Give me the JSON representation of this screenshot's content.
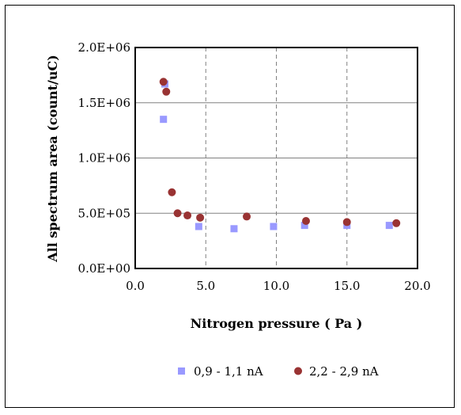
{
  "chart_data": {
    "type": "scatter",
    "title": "",
    "xlabel": "Nitrogen pressure ( Pa )",
    "ylabel": "All spectrum area  (count/uC)",
    "xlim": [
      0,
      20
    ],
    "ylim": [
      0,
      2000000
    ],
    "x_ticks": [
      "0.0",
      "5.0",
      "10.0",
      "15.0",
      "20.0"
    ],
    "x_tick_values": [
      0,
      5,
      10,
      15,
      20
    ],
    "y_ticks": [
      "0.0E+00",
      "5.0E+05",
      "1.0E+06",
      "1.5E+06",
      "2.0E+06"
    ],
    "y_tick_values": [
      0,
      500000,
      1000000,
      1500000,
      2000000
    ],
    "grid": {
      "horizontal": "solid",
      "vertical": "dashed"
    },
    "legend_position": "bottom",
    "series": [
      {
        "name": "0,9 - 1,1 nA",
        "color": "#9999ff",
        "marker": "square",
        "points": [
          {
            "x": 2.0,
            "y": 1350000
          },
          {
            "x": 2.1,
            "y": 1670000
          },
          {
            "x": 4.5,
            "y": 380000
          },
          {
            "x": 7.0,
            "y": 360000
          },
          {
            "x": 9.8,
            "y": 380000
          },
          {
            "x": 12.0,
            "y": 390000
          },
          {
            "x": 15.0,
            "y": 390000
          },
          {
            "x": 18.0,
            "y": 390000
          }
        ]
      },
      {
        "name": "2,2 - 2,9 nA",
        "color": "#993333",
        "marker": "circle",
        "points": [
          {
            "x": 2.0,
            "y": 1690000
          },
          {
            "x": 2.2,
            "y": 1600000
          },
          {
            "x": 2.6,
            "y": 690000
          },
          {
            "x": 3.0,
            "y": 500000
          },
          {
            "x": 3.7,
            "y": 480000
          },
          {
            "x": 4.6,
            "y": 460000
          },
          {
            "x": 7.9,
            "y": 470000
          },
          {
            "x": 12.1,
            "y": 430000
          },
          {
            "x": 15.0,
            "y": 420000
          },
          {
            "x": 18.5,
            "y": 410000
          }
        ]
      }
    ]
  }
}
